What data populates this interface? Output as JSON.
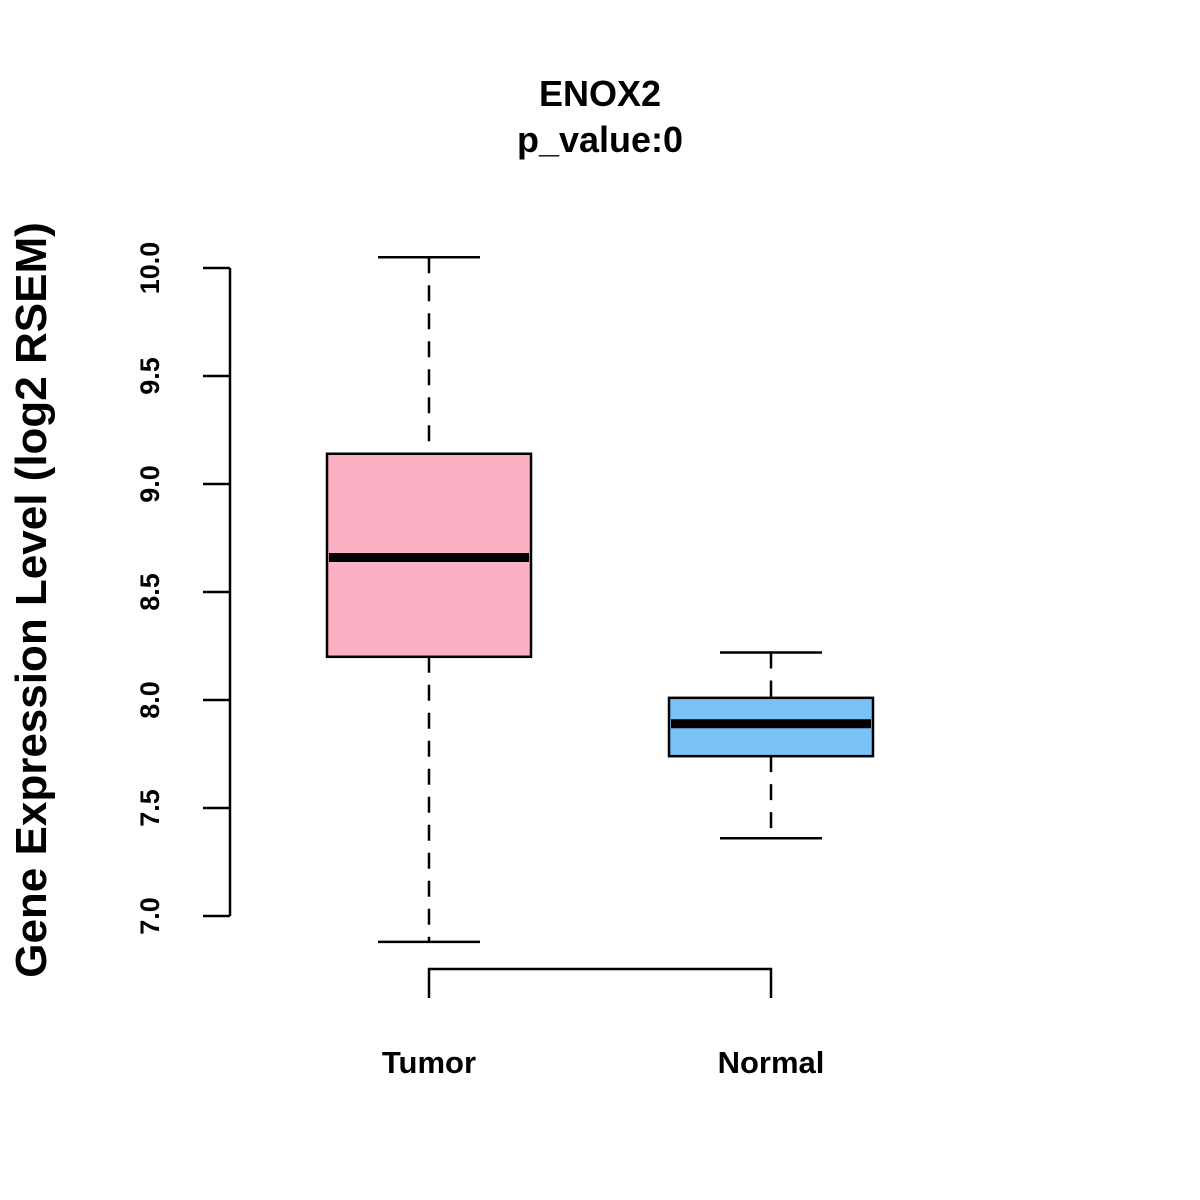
{
  "chart_data": {
    "type": "box",
    "title": "ENOX2",
    "subtitle": "p_value:0",
    "xlabel": "",
    "ylabel": "Gene Expression Level (log2 RSEM)",
    "ylim": [
      6.85,
      10.05
    ],
    "yticks": [
      7.0,
      7.5,
      8.0,
      8.5,
      9.0,
      9.5,
      10.0
    ],
    "ytick_labels": [
      "7.0",
      "7.5",
      "8.0",
      "8.5",
      "9.0",
      "9.5",
      "10.0"
    ],
    "categories": [
      "Tumor",
      "Normal"
    ],
    "series": [
      {
        "name": "Tumor",
        "min": 6.88,
        "q1": 8.2,
        "median": 8.66,
        "q3": 9.14,
        "max": 10.05,
        "color": "#fbb1c3"
      },
      {
        "name": "Normal",
        "min": 7.36,
        "q1": 7.74,
        "median": 7.89,
        "q3": 8.01,
        "max": 8.22,
        "color": "#79c1f7"
      }
    ],
    "grid": false,
    "comparison_bracket": [
      "Tumor",
      "Normal"
    ]
  }
}
